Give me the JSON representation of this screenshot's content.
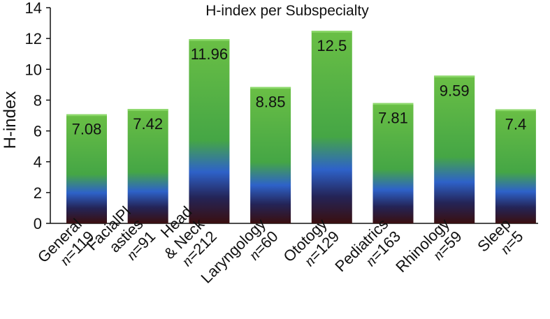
{
  "chart_data": {
    "type": "bar",
    "title": "H-index per Subspecialty",
    "xlabel": "",
    "ylabel": "H-index",
    "ylim": [
      0,
      14
    ],
    "yticks": [
      0,
      2,
      4,
      6,
      8,
      10,
      12,
      14
    ],
    "grid": false,
    "categories": [
      {
        "lines": [
          "General",
          "n=119"
        ]
      },
      {
        "lines": [
          "FacialPl",
          "asties",
          "n=91"
        ]
      },
      {
        "lines": [
          "Head",
          "& Neck",
          "n=212"
        ]
      },
      {
        "lines": [
          "Laryngology",
          "n=60"
        ]
      },
      {
        "lines": [
          "Ototogy",
          "n=129"
        ]
      },
      {
        "lines": [
          "Pediatrics",
          "n=163"
        ]
      },
      {
        "lines": [
          "Rhinology",
          "n=59"
        ]
      },
      {
        "lines": [
          "Sleep",
          "n=5"
        ]
      }
    ],
    "values": [
      7.08,
      7.42,
      11.96,
      8.85,
      12.5,
      7.81,
      9.59,
      7.4
    ],
    "data_labels": [
      "7.08",
      "7.42",
      "11.96",
      "8.85",
      "12.5",
      "7.81",
      "9.59",
      "7.4"
    ],
    "bar_gradient": [
      "#6abf45",
      "#45a645",
      "#2e62c9",
      "#242457",
      "#3a0f0f"
    ]
  }
}
